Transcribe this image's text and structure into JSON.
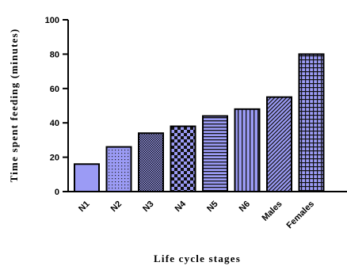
{
  "chart_data": {
    "type": "bar",
    "title": "",
    "xlabel": "Life cycle stages",
    "ylabel": "Time spent feeding (minutes)",
    "ylim": [
      0,
      100
    ],
    "yticks": [
      0,
      20,
      40,
      60,
      80,
      100
    ],
    "categories": [
      "N1",
      "N2",
      "N3",
      "N4",
      "N5",
      "N6",
      "Males",
      "Females"
    ],
    "values": [
      16,
      26,
      34,
      38,
      44,
      48,
      55,
      80
    ],
    "patterns": [
      "solid",
      "dots",
      "fine-check",
      "checker",
      "horizontal-lines",
      "vertical-lines",
      "diagonal-hatch",
      "grid"
    ],
    "bar_color": "#9b9bf5",
    "edge_color": "#000000",
    "grid": false,
    "legend": "none"
  }
}
